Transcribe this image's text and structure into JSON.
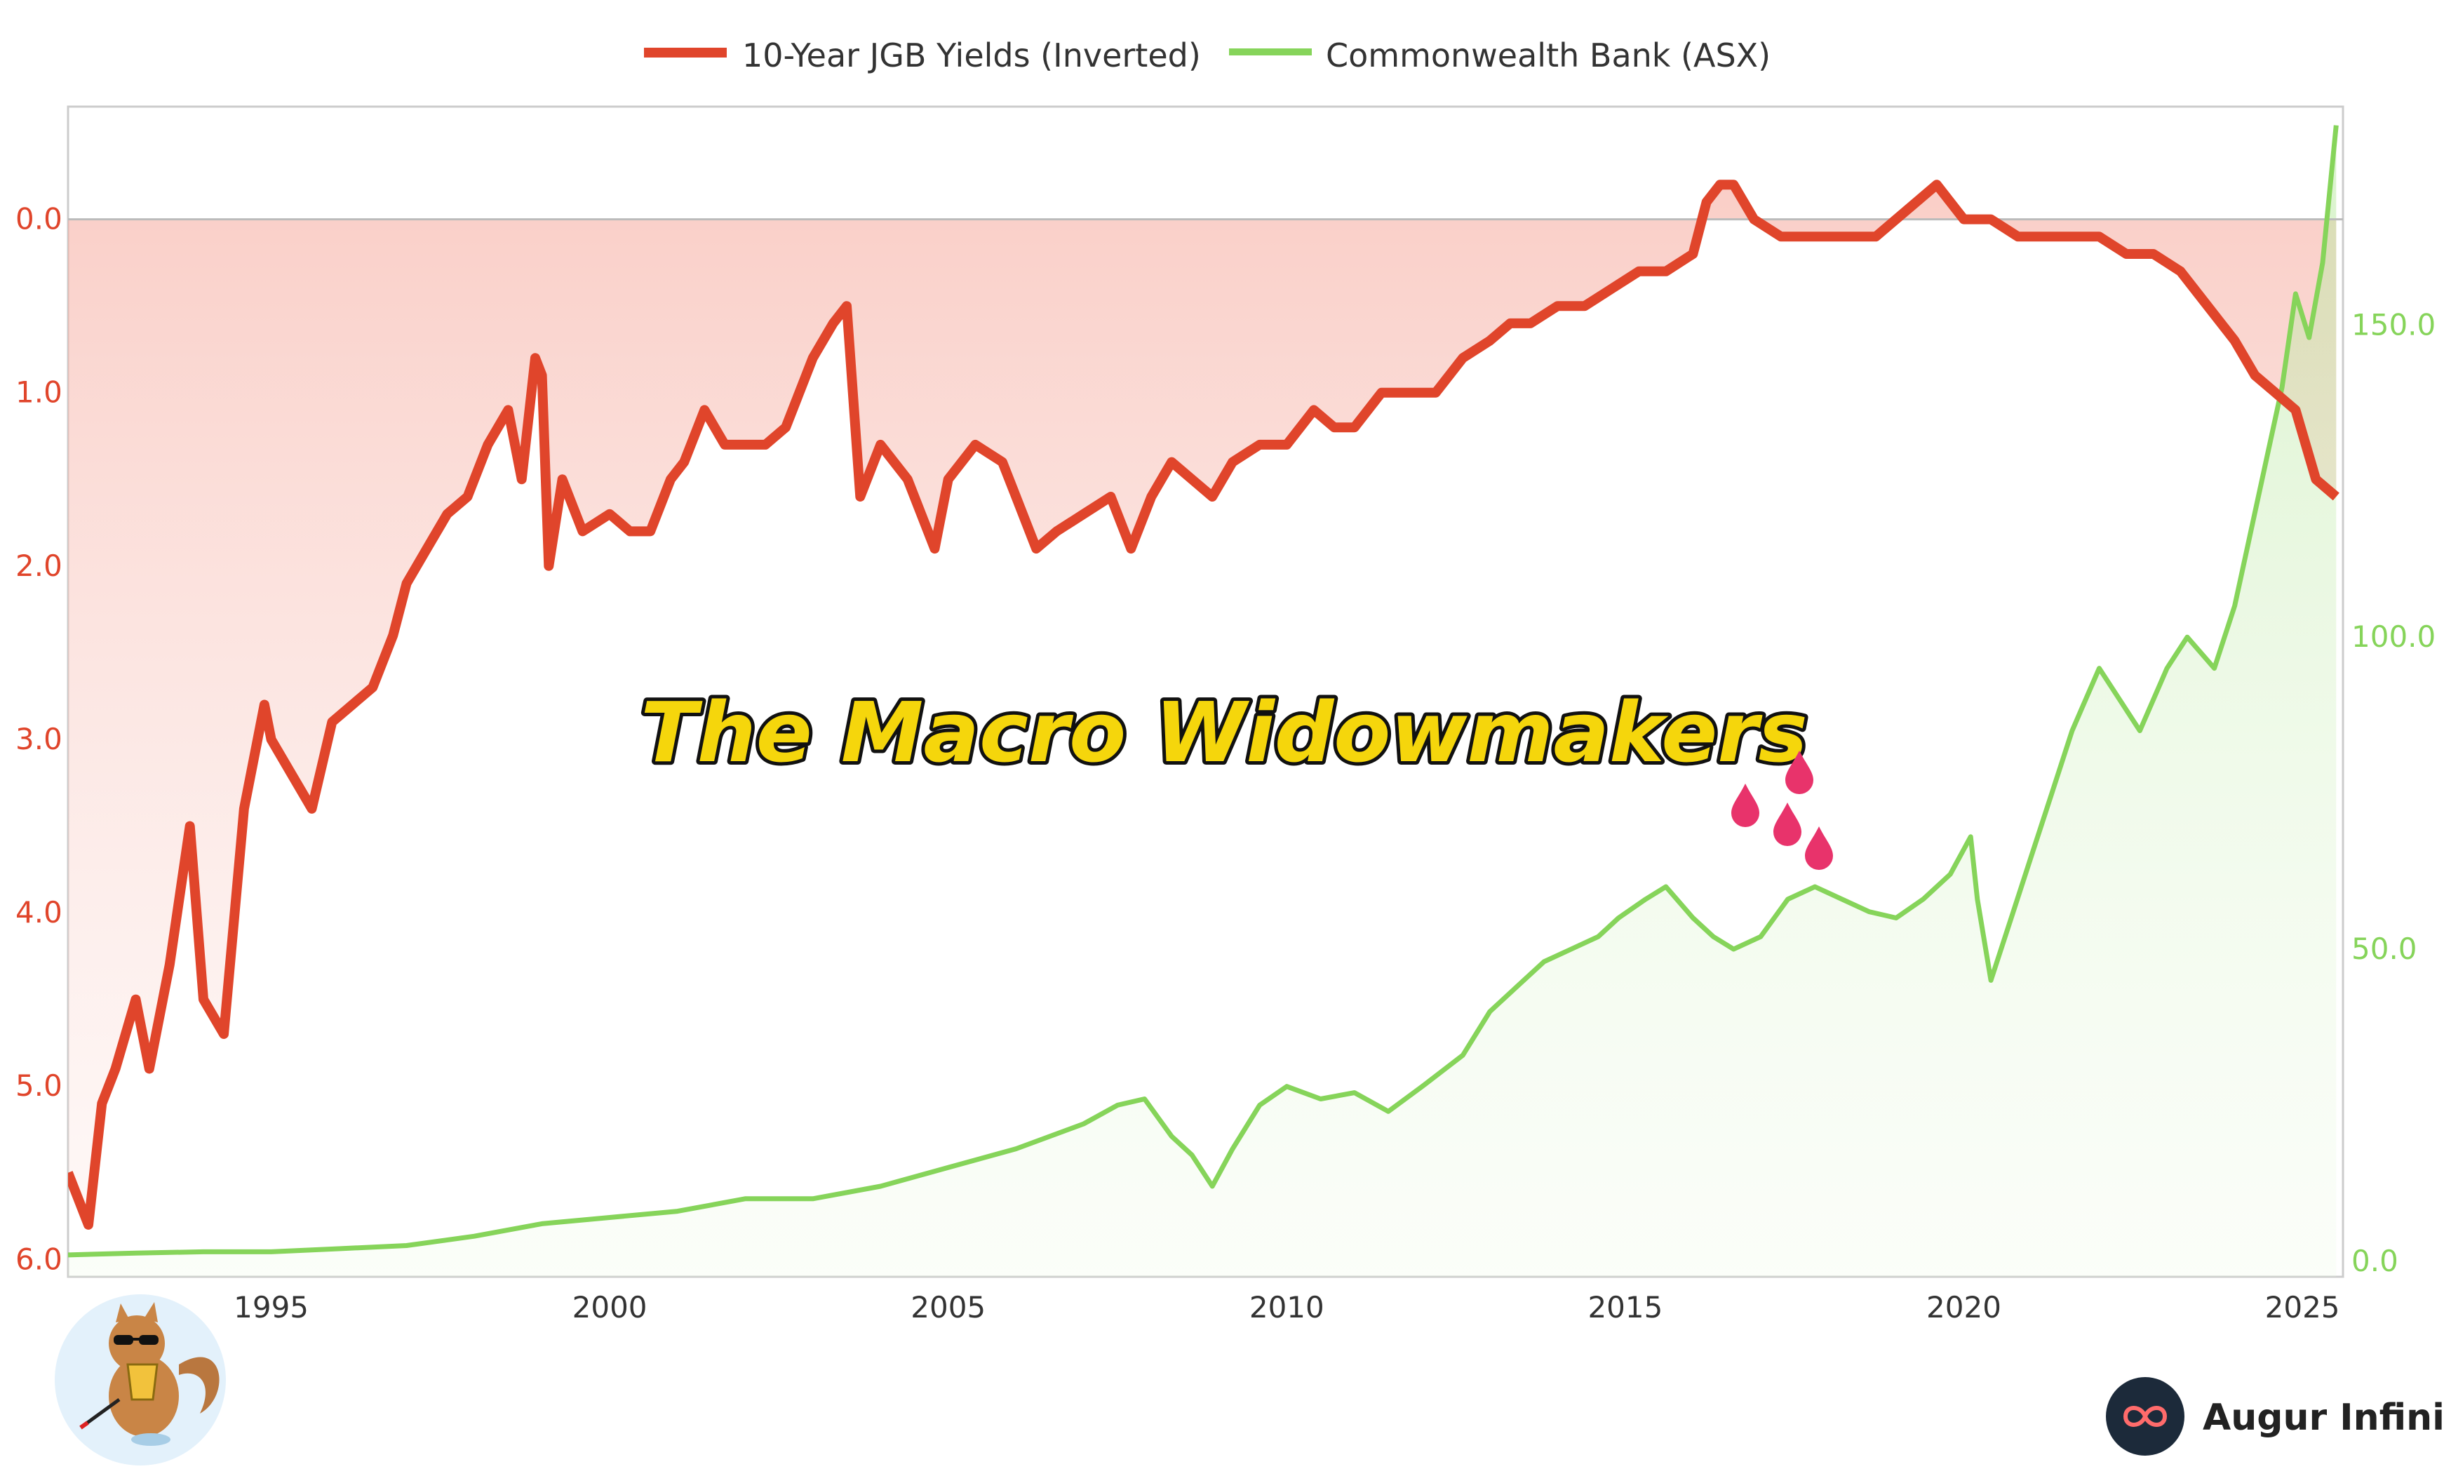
{
  "chart_data": {
    "type": "line",
    "title": "The Macro Widowmakers",
    "legend": {
      "placement": "top-center",
      "entries": [
        "10-Year JGB Yields (Inverted)",
        "Commonwealth Bank (ASX)"
      ]
    },
    "x_ticks": [
      "1995",
      "2000",
      "2005",
      "2010",
      "2015",
      "2020",
      "2025"
    ],
    "x_range": [
      1992.0,
      2025.6
    ],
    "y_left": {
      "inverted": true,
      "range": [
        -0.65,
        6.1
      ],
      "ticks": [
        "0.0",
        "1.0",
        "2.0",
        "3.0",
        "4.0",
        "5.0",
        "6.0"
      ],
      "color": "#e0452b",
      "baseline": 0.0
    },
    "y_right": {
      "range": [
        -2.5,
        185
      ],
      "ticks": [
        "0.0",
        "50.0",
        "100.0",
        "150.0"
      ],
      "color": "#86d45a"
    },
    "grid": false,
    "series": [
      {
        "name": "10-Year JGB Yields (Inverted)",
        "axis": "left",
        "color": "#e0452b",
        "x": [
          1992.0,
          1992.3,
          1992.5,
          1992.7,
          1993.0,
          1993.2,
          1993.5,
          1993.8,
          1994.0,
          1994.3,
          1994.6,
          1994.9,
          1995.0,
          1995.3,
          1995.6,
          1995.9,
          1996.2,
          1996.5,
          1996.8,
          1997.0,
          1997.3,
          1997.6,
          1997.9,
          1998.2,
          1998.5,
          1998.7,
          1998.9,
          1999.0,
          1999.1,
          1999.3,
          1999.6,
          2000.0,
          2000.3,
          2000.6,
          2000.9,
          2001.1,
          2001.4,
          2001.7,
          2002.0,
          2002.3,
          2002.6,
          2003.0,
          2003.3,
          2003.5,
          2003.7,
          2004.0,
          2004.4,
          2004.8,
          2005.0,
          2005.4,
          2005.8,
          2006.0,
          2006.3,
          2006.6,
          2007.0,
          2007.4,
          2007.7,
          2008.0,
          2008.3,
          2008.6,
          2008.9,
          2009.2,
          2009.6,
          2010.0,
          2010.4,
          2010.7,
          2011.0,
          2011.4,
          2011.8,
          2012.2,
          2012.6,
          2013.0,
          2013.3,
          2013.6,
          2014.0,
          2014.4,
          2014.8,
          2015.2,
          2015.6,
          2016.0,
          2016.2,
          2016.4,
          2016.6,
          2016.9,
          2017.3,
          2017.7,
          2018.2,
          2018.7,
          2019.0,
          2019.3,
          2019.6,
          2020.0,
          2020.4,
          2020.8,
          2021.2,
          2021.6,
          2022.0,
          2022.4,
          2022.8,
          2023.2,
          2023.6,
          2024.0,
          2024.3,
          2024.6,
          2024.9,
          2025.2,
          2025.5
        ],
        "y": [
          5.5,
          5.8,
          5.1,
          4.9,
          4.5,
          4.9,
          4.3,
          3.5,
          4.5,
          4.7,
          3.4,
          2.8,
          3.0,
          3.2,
          3.4,
          2.9,
          2.8,
          2.7,
          2.4,
          2.1,
          1.9,
          1.7,
          1.6,
          1.3,
          1.1,
          1.5,
          0.8,
          0.9,
          2.0,
          1.5,
          1.8,
          1.7,
          1.8,
          1.8,
          1.5,
          1.4,
          1.1,
          1.3,
          1.3,
          1.3,
          1.2,
          0.8,
          0.6,
          0.5,
          1.6,
          1.3,
          1.5,
          1.9,
          1.5,
          1.3,
          1.4,
          1.6,
          1.9,
          1.8,
          1.7,
          1.6,
          1.9,
          1.6,
          1.4,
          1.5,
          1.6,
          1.4,
          1.3,
          1.3,
          1.1,
          1.2,
          1.2,
          1.0,
          1.0,
          1.0,
          0.8,
          0.7,
          0.6,
          0.6,
          0.5,
          0.5,
          0.4,
          0.3,
          0.3,
          0.2,
          -0.1,
          -0.2,
          -0.2,
          0.0,
          0.1,
          0.1,
          0.1,
          0.1,
          0.0,
          -0.1,
          -0.2,
          0.0,
          0.0,
          0.1,
          0.1,
          0.1,
          0.1,
          0.2,
          0.2,
          0.3,
          0.5,
          0.7,
          0.9,
          1.0,
          1.1,
          1.5,
          1.6
        ]
      },
      {
        "name": "Commonwealth Bank (ASX)",
        "axis": "right",
        "color": "#86d45a",
        "x": [
          1992.0,
          1993.0,
          1994.0,
          1995.0,
          1996.0,
          1997.0,
          1998.0,
          1999.0,
          2000.0,
          2001.0,
          2002.0,
          2003.0,
          2004.0,
          2005.0,
          2006.0,
          2007.0,
          2007.5,
          2007.9,
          2008.3,
          2008.6,
          2008.9,
          2009.2,
          2009.6,
          2010.0,
          2010.5,
          2011.0,
          2011.5,
          2012.0,
          2012.6,
          2013.0,
          2013.4,
          2013.8,
          2014.2,
          2014.6,
          2014.9,
          2015.3,
          2015.6,
          2016.0,
          2016.3,
          2016.6,
          2017.0,
          2017.4,
          2017.8,
          2018.2,
          2018.6,
          2019.0,
          2019.4,
          2019.8,
          2020.1,
          2020.2,
          2020.4,
          2020.7,
          2021.0,
          2021.3,
          2021.6,
          2022.0,
          2022.3,
          2022.6,
          2023.0,
          2023.3,
          2023.7,
          2024.0,
          2024.2,
          2024.5,
          2024.7,
          2024.9,
          2025.1,
          2025.3,
          2025.5
        ],
        "y": [
          1,
          1.3,
          1.5,
          1.5,
          2,
          2.5,
          4,
          6,
          7,
          8,
          10,
          10,
          12,
          15,
          18,
          22,
          25,
          26,
          20,
          17,
          12,
          18,
          25,
          28,
          26,
          27,
          24,
          28,
          33,
          40,
          44,
          48,
          50,
          52,
          55,
          58,
          60,
          55,
          52,
          50,
          52,
          58,
          60,
          58,
          56,
          55,
          58,
          62,
          68,
          58,
          45,
          55,
          65,
          75,
          85,
          95,
          90,
          85,
          95,
          100,
          95,
          105,
          115,
          130,
          140,
          155,
          148,
          160,
          182
        ]
      }
    ],
    "decorations": {
      "drops": [
        "blood-drop-1",
        "blood-drop-2",
        "blood-drop-3",
        "blood-drop-4"
      ],
      "logo_left": "squirrel-mascot",
      "brand": "Augur Infinity"
    }
  }
}
